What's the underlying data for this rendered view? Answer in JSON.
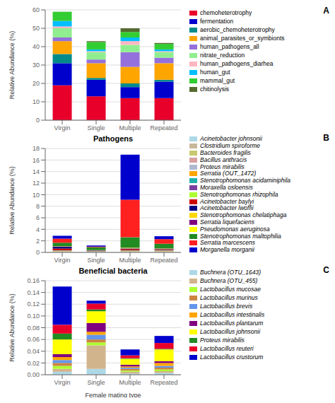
{
  "chart_data": [
    {
      "type": "bar",
      "stacked": true,
      "categories": [
        "Virgin",
        "Single",
        "Multiple",
        "Repeated"
      ],
      "ylabel": "Relative Abundance (%)",
      "ylim": [
        0,
        60
      ],
      "yticks": [
        0,
        10,
        20,
        30,
        40,
        50,
        60
      ],
      "grid": true,
      "legend": "right",
      "annotations": [
        "A"
      ],
      "series": [
        {
          "name": "chemoheterotrophy",
          "color": "#e8002b",
          "values": [
            19,
            13,
            12,
            12
          ]
        },
        {
          "name": "fermentation",
          "color": "#0000cd",
          "values": [
            12,
            9,
            6,
            9
          ]
        },
        {
          "name": "aerobic_chemoheterotrophy",
          "color": "#008b8b",
          "values": [
            5,
            1,
            2,
            1
          ]
        },
        {
          "name": "animal_parasites_or_symbionts",
          "color": "#ffa500",
          "values": [
            7,
            8,
            9,
            9
          ]
        },
        {
          "name": "human_pathogens_all",
          "color": "#9370db",
          "values": [
            2,
            2,
            8,
            3
          ]
        },
        {
          "name": "nitrate_reduction",
          "color": "#90ee90",
          "values": [
            5,
            4,
            4,
            3
          ]
        },
        {
          "name": "human_pathogens_diarhea",
          "color": "#ffb6c1",
          "values": [
            1,
            0.5,
            2,
            0.5
          ]
        },
        {
          "name": "human_gut",
          "color": "#00bfff",
          "values": [
            3,
            1,
            2,
            1
          ]
        },
        {
          "name": "mammal_gut",
          "color": "#32cd32",
          "values": [
            5,
            4,
            3,
            3
          ]
        },
        {
          "name": "chitinolysis",
          "color": "#556b2f",
          "values": [
            0,
            0.5,
            2,
            0.5
          ]
        }
      ]
    },
    {
      "type": "bar",
      "stacked": true,
      "title": "Pathogens",
      "categories": [
        "Virgin",
        "Single",
        "Multiple",
        "Repeated"
      ],
      "ylabel": "Relative Abundance (%)",
      "ylim": [
        0,
        18
      ],
      "yticks": [
        0,
        2,
        4,
        6,
        8,
        10,
        12,
        14,
        16,
        18
      ],
      "grid": true,
      "legend": "right",
      "annotations": [
        "B"
      ],
      "series": [
        {
          "name": "Acinetobacter johnsonii",
          "color": "#add8e6",
          "values": [
            0.05,
            0.03,
            0.05,
            0.05
          ]
        },
        {
          "name": "Clostridium spiroforme",
          "color": "#c8b89a",
          "values": [
            0.03,
            0.02,
            0.03,
            0.03
          ]
        },
        {
          "name": "Bacteroides fragilis",
          "color": "#c8c870",
          "values": [
            0.03,
            0.02,
            0.03,
            0.03
          ]
        },
        {
          "name": "Bacillus anthracis",
          "color": "#d8a0a0",
          "values": [
            0.03,
            0.02,
            0.03,
            0.03
          ]
        },
        {
          "name": "Proteus mirabilis",
          "color": "#b0b8d0",
          "values": [
            0.05,
            0.03,
            0.05,
            0.05
          ]
        },
        {
          "name": "Serratia (OUT_1472)",
          "color": "#ffa500",
          "values": [
            0.05,
            0.03,
            0.05,
            0.05
          ]
        },
        {
          "name": "Stenotrophomonas acidaminiphila",
          "color": "#20b2aa",
          "values": [
            0.05,
            0.03,
            0.05,
            0.05
          ]
        },
        {
          "name": "Moraxella osloensis",
          "color": "#7b3fa0",
          "values": [
            0.05,
            0.03,
            0.05,
            0.05
          ]
        },
        {
          "name": "Stenotrophomonas rhizophila",
          "color": "#adff2f",
          "values": [
            0.03,
            0.02,
            0.03,
            0.03
          ]
        },
        {
          "name": "Acinetobacter baylyi",
          "color": "#cc0000",
          "values": [
            0.3,
            0.05,
            0.2,
            0.1
          ]
        },
        {
          "name": "Acinetobacter lwoffii",
          "color": "#000080",
          "values": [
            0.3,
            0.05,
            0.1,
            0.1
          ]
        },
        {
          "name": "Stenotrophomonas chelatiphaga",
          "color": "#ffd700",
          "values": [
            0.03,
            0.02,
            0.05,
            0.05
          ]
        },
        {
          "name": "Serratia liquefaciens",
          "color": "#800080",
          "values": [
            0.05,
            0.03,
            0.05,
            0.05
          ]
        },
        {
          "name": "Pseudomonas aeruginosa",
          "color": "#ffff00",
          "values": [
            0.03,
            0.02,
            0.05,
            0.03
          ]
        },
        {
          "name": "Stenotrophomonas maltophilia",
          "color": "#228b22",
          "values": [
            0.6,
            0.5,
            1.8,
            0.8
          ]
        },
        {
          "name": "Serratia marcescens",
          "color": "#ff2020",
          "values": [
            0.7,
            0.1,
            6.5,
            0.8
          ]
        },
        {
          "name": "Morganella morganii",
          "color": "#0000cd",
          "values": [
            0.5,
            0.2,
            7.8,
            0.5
          ]
        }
      ]
    },
    {
      "type": "bar",
      "stacked": true,
      "title": "Beneficial bacteria",
      "categories": [
        "Virgin",
        "Single",
        "Multiple",
        "Repeated"
      ],
      "xlabel": "Female mating type",
      "ylabel": "Relative Abundance (%)",
      "ylim": [
        0,
        0.16
      ],
      "yticks": [
        {
          "value": 0,
          "label": "0.00"
        },
        0.02,
        0.04,
        0.06,
        0.08,
        {
          "value": 0.1,
          "label": "0.10"
        },
        0.12,
        0.14,
        0.16
      ],
      "grid": true,
      "legend": "right",
      "annotations": [
        "C"
      ],
      "series": [
        {
          "name": "Buchnera (OTU_1643)",
          "color": "#add8e6",
          "values": [
            0.005,
            0.01,
            0.002,
            0.003
          ]
        },
        {
          "name": "Buchnera (OTU_455)",
          "color": "#d2b48c",
          "values": [
            0.005,
            0.04,
            0.003,
            0.003
          ]
        },
        {
          "name": "Lactobacillus mucosae",
          "color": "#adff2f",
          "values": [
            0.005,
            0.005,
            0.002,
            0.003
          ]
        },
        {
          "name": "Lactobacillus murinus",
          "color": "#cd853f",
          "values": [
            0.005,
            0.005,
            0.003,
            0.003
          ]
        },
        {
          "name": "Lactobacillus brevis",
          "color": "#6495ed",
          "values": [
            0.005,
            0.008,
            0.002,
            0.003
          ]
        },
        {
          "name": "Lactobacillus intestinalis",
          "color": "#ffa500",
          "values": [
            0.005,
            0.005,
            0.002,
            0.005
          ]
        },
        {
          "name": "Lactobacillus plantarum",
          "color": "#800080",
          "values": [
            0.005,
            0.015,
            0.003,
            0.003
          ]
        },
        {
          "name": "Lactobacillus johnsonii",
          "color": "#ffff00",
          "values": [
            0.025,
            0.02,
            0.01,
            0.02
          ]
        },
        {
          "name": "Proteus mirabilis",
          "color": "#228b22",
          "values": [
            0.01,
            0.003,
            0.001,
            0.001
          ]
        },
        {
          "name": "Lactobacillus reuteri",
          "color": "#e8002b",
          "values": [
            0.015,
            0.01,
            0.005,
            0.01
          ]
        },
        {
          "name": "Lactobacillus crustorum",
          "color": "#0000cd",
          "values": [
            0.065,
            0.005,
            0.01,
            0.012
          ]
        }
      ]
    }
  ]
}
